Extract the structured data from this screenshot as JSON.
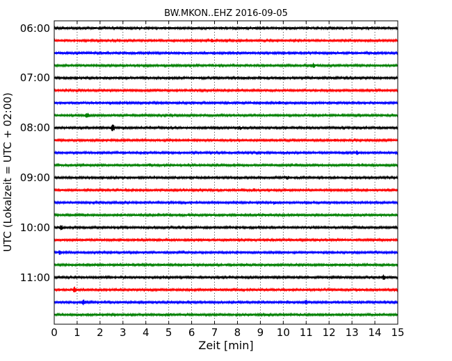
{
  "chart_data": {
    "type": "line",
    "title": "BW.MKON..EHZ 2016-09-05",
    "xlabel": "Zeit  [min]",
    "ylabel": "UTC (Lokalzeit = UTC + 02:00)",
    "xlim": [
      0,
      15
    ],
    "x_ticks": [
      "0",
      "1",
      "2",
      "3",
      "4",
      "5",
      "6",
      "7",
      "8",
      "9",
      "10",
      "11",
      "12",
      "13",
      "14",
      "15"
    ],
    "y_tick_labels": [
      "06:00",
      "07:00",
      "08:00",
      "09:00",
      "10:00",
      "11:00"
    ],
    "grid": "vertical dotted at each minute",
    "trace_minutes": 15,
    "trace_colors": [
      "#000000",
      "#ff0000",
      "#0000ff",
      "#008000"
    ],
    "series": [
      {
        "start": "06:00",
        "bursts": []
      },
      {
        "start": "06:15",
        "bursts": [
          {
            "t": 6.9,
            "a": 1.5
          }
        ]
      },
      {
        "start": "06:30",
        "bursts": []
      },
      {
        "start": "06:45",
        "bursts": [
          {
            "t": 11.3,
            "a": 3.5
          }
        ]
      },
      {
        "start": "07:00",
        "bursts": []
      },
      {
        "start": "07:15",
        "bursts": []
      },
      {
        "start": "07:30",
        "bursts": [
          {
            "t": 9.8,
            "a": 1.6
          }
        ]
      },
      {
        "start": "07:45",
        "bursts": [
          {
            "t": 1.45,
            "a": 3
          }
        ]
      },
      {
        "start": "08:00",
        "bursts": [
          {
            "t": 2.55,
            "a": 5
          },
          {
            "t": 8.1,
            "a": 2
          }
        ]
      },
      {
        "start": "08:15",
        "bursts": [
          {
            "t": 12.3,
            "a": 1.6
          }
        ]
      },
      {
        "start": "08:30",
        "bursts": [
          {
            "t": 13.2,
            "a": 2
          }
        ]
      },
      {
        "start": "08:45",
        "bursts": [
          {
            "t": 4.2,
            "a": 1.4
          }
        ]
      },
      {
        "start": "09:00",
        "bursts": [
          {
            "t": 10.2,
            "a": 2
          }
        ]
      },
      {
        "start": "09:15",
        "bursts": [
          {
            "t": 8.7,
            "a": 1.5
          }
        ]
      },
      {
        "start": "09:30",
        "bursts": [
          {
            "t": 9.6,
            "a": 1.7
          }
        ]
      },
      {
        "start": "09:45",
        "bursts": [
          {
            "t": 9.2,
            "a": 1.4
          }
        ]
      },
      {
        "start": "10:00",
        "bursts": [
          {
            "t": 0.3,
            "a": 2.5
          }
        ]
      },
      {
        "start": "10:15",
        "bursts": []
      },
      {
        "start": "10:30",
        "bursts": [
          {
            "t": 0.25,
            "a": 2
          }
        ]
      },
      {
        "start": "10:45",
        "bursts": []
      },
      {
        "start": "11:00",
        "bursts": [
          {
            "t": 14.4,
            "a": 3.5
          }
        ]
      },
      {
        "start": "11:15",
        "bursts": [
          {
            "t": 0.9,
            "a": 3.5
          }
        ]
      },
      {
        "start": "11:30",
        "bursts": [
          {
            "t": 1.3,
            "a": 3
          },
          {
            "t": 11.0,
            "a": 2.5
          },
          {
            "t": 13.2,
            "a": 1.5
          }
        ]
      },
      {
        "start": "11:45",
        "bursts": [
          {
            "t": 5.0,
            "a": 1.4
          }
        ]
      }
    ]
  }
}
